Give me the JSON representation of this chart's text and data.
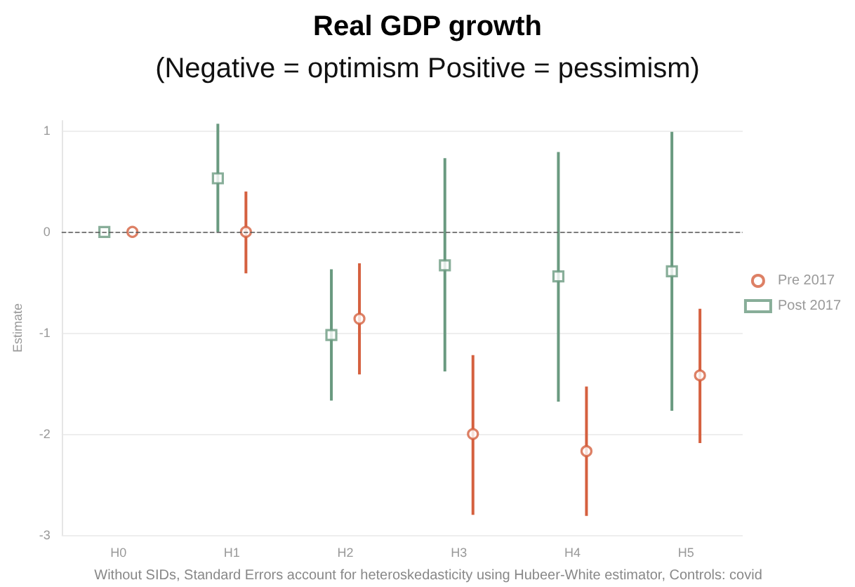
{
  "chart_data": {
    "type": "scatter",
    "title": "Real GDP growth",
    "subtitle": "(Negative = optimism Positive = pessimism)",
    "ylabel": "Estimate",
    "annotations": [
      "Without SIDs, Standard Errors account for heteroskedasticity using Hubeer-White estimator, Controls: covid"
    ],
    "categories": [
      "H0",
      "H1",
      "H2",
      "H3",
      "H4",
      "H5"
    ],
    "series": [
      {
        "name": "Post 2017",
        "color": "#6a9a80",
        "marker": "square",
        "values": [
          0,
          0.53,
          -1.02,
          -0.33,
          -0.44,
          -0.39
        ],
        "errors": [
          null,
          [
            0,
            1.07
          ],
          [
            -1.67,
            -0.37
          ],
          [
            -1.38,
            0.73
          ],
          [
            -1.68,
            0.79
          ],
          [
            -1.77,
            0.99
          ]
        ]
      },
      {
        "name": "Pre 2017",
        "color": "#d5603f",
        "marker": "circle",
        "values": [
          0,
          0,
          -0.86,
          -2.0,
          -2.17,
          -1.42
        ],
        "errors": [
          null,
          [
            -0.41,
            0.4
          ],
          [
            -1.41,
            -0.31
          ],
          [
            -2.8,
            -1.22
          ],
          [
            -2.81,
            -1.53
          ],
          [
            -2.09,
            -0.76
          ]
        ]
      }
    ],
    "ylim": [
      -3,
      1.1
    ],
    "yticks": [
      -3,
      -2,
      -1,
      0,
      1
    ],
    "grid": "y",
    "legend": "right",
    "ref_lines": [
      {
        "axis": "y",
        "value": 0,
        "line_style": "dashed",
        "color": "#555555"
      }
    ]
  }
}
